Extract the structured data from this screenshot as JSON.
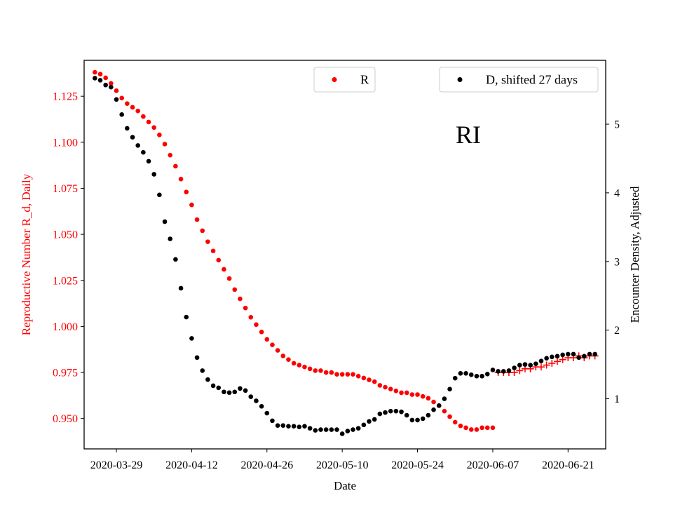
{
  "chart_data": {
    "type": "scatter",
    "xlabel": "Date",
    "ylabel_left": "Reproductive Number R_d, Daily",
    "ylabel_right": "Encounter Density, Adjusted",
    "annotation": "RI",
    "x_tick_labels": [
      "2020-03-29",
      "2020-04-12",
      "2020-04-26",
      "2020-05-10",
      "2020-05-24",
      "2020-06-07",
      "2020-06-21"
    ],
    "y_left_ticks": [
      "0.950",
      "0.975",
      "1.000",
      "1.025",
      "1.050",
      "1.075",
      "1.100",
      "1.125"
    ],
    "y_right_ticks": [
      "1",
      "2",
      "3",
      "4",
      "5"
    ],
    "x_range": [
      "2020-03-23",
      "2020-06-28"
    ],
    "y_left_range": [
      0.9335,
      1.1445
    ],
    "y_right_range": [
      0.27,
      5.93
    ],
    "colors": {
      "R": "#ff0000",
      "D": "#000000",
      "left_axis": "#ff0000",
      "right_axis": "#000000"
    },
    "legend": [
      {
        "label": "R",
        "color": "#ff0000",
        "position": "top-center"
      },
      {
        "label": "D, shifted 27 days",
        "color": "#000000",
        "position": "top-right"
      }
    ],
    "series": [
      {
        "name": "R",
        "axis": "left",
        "marker": "dot",
        "color": "#ff0000",
        "x": [
          "2020-03-25",
          "2020-03-26",
          "2020-03-27",
          "2020-03-28",
          "2020-03-29",
          "2020-03-30",
          "2020-03-31",
          "2020-04-01",
          "2020-04-02",
          "2020-04-03",
          "2020-04-04",
          "2020-04-05",
          "2020-04-06",
          "2020-04-07",
          "2020-04-08",
          "2020-04-09",
          "2020-04-10",
          "2020-04-11",
          "2020-04-12",
          "2020-04-13",
          "2020-04-14",
          "2020-04-15",
          "2020-04-16",
          "2020-04-17",
          "2020-04-18",
          "2020-04-19",
          "2020-04-20",
          "2020-04-21",
          "2020-04-22",
          "2020-04-23",
          "2020-04-24",
          "2020-04-25",
          "2020-04-26",
          "2020-04-27",
          "2020-04-28",
          "2020-04-29",
          "2020-04-30",
          "2020-05-01",
          "2020-05-02",
          "2020-05-03",
          "2020-05-04",
          "2020-05-05",
          "2020-05-06",
          "2020-05-07",
          "2020-05-08",
          "2020-05-09",
          "2020-05-10",
          "2020-05-11",
          "2020-05-12",
          "2020-05-13",
          "2020-05-14",
          "2020-05-15",
          "2020-05-16",
          "2020-05-17",
          "2020-05-18",
          "2020-05-19",
          "2020-05-20",
          "2020-05-21",
          "2020-05-22",
          "2020-05-23",
          "2020-05-24",
          "2020-05-25",
          "2020-05-26",
          "2020-05-27",
          "2020-05-28",
          "2020-05-29",
          "2020-05-30",
          "2020-05-31",
          "2020-06-01",
          "2020-06-02",
          "2020-06-03",
          "2020-06-04",
          "2020-06-05",
          "2020-06-06",
          "2020-06-07"
        ],
        "y": [
          1.138,
          1.137,
          1.135,
          1.132,
          1.128,
          1.124,
          1.121,
          1.119,
          1.117,
          1.114,
          1.111,
          1.108,
          1.104,
          1.099,
          1.093,
          1.087,
          1.08,
          1.073,
          1.066,
          1.058,
          1.052,
          1.046,
          1.041,
          1.036,
          1.031,
          1.026,
          1.02,
          1.015,
          1.01,
          1.005,
          1.001,
          0.997,
          0.993,
          0.99,
          0.987,
          0.984,
          0.982,
          0.98,
          0.979,
          0.978,
          0.977,
          0.976,
          0.976,
          0.975,
          0.975,
          0.974,
          0.974,
          0.974,
          0.974,
          0.973,
          0.972,
          0.971,
          0.97,
          0.968,
          0.967,
          0.966,
          0.965,
          0.964,
          0.964,
          0.963,
          0.963,
          0.962,
          0.961,
          0.959,
          0.957,
          0.954,
          0.951,
          0.948,
          0.946,
          0.945,
          0.944,
          0.944,
          0.945,
          0.945,
          0.945
        ]
      },
      {
        "name": "R",
        "axis": "left",
        "marker": "plus",
        "color": "#ff0000",
        "x": [
          "2020-06-08",
          "2020-06-09",
          "2020-06-10",
          "2020-06-11",
          "2020-06-12",
          "2020-06-13",
          "2020-06-14",
          "2020-06-15",
          "2020-06-16",
          "2020-06-17",
          "2020-06-18",
          "2020-06-19",
          "2020-06-20",
          "2020-06-21",
          "2020-06-22",
          "2020-06-23",
          "2020-06-24",
          "2020-06-25",
          "2020-06-26"
        ],
        "y": [
          0.975,
          0.975,
          0.975,
          0.975,
          0.976,
          0.977,
          0.977,
          0.978,
          0.978,
          0.979,
          0.98,
          0.981,
          0.982,
          0.983,
          0.983,
          0.984,
          0.983,
          0.984,
          0.984
        ]
      },
      {
        "name": "D, shifted 27 days",
        "axis": "right",
        "marker": "dot",
        "color": "#000000",
        "x": [
          "2020-03-25",
          "2020-03-26",
          "2020-03-27",
          "2020-03-28",
          "2020-03-29",
          "2020-03-30",
          "2020-03-31",
          "2020-04-01",
          "2020-04-02",
          "2020-04-03",
          "2020-04-04",
          "2020-04-05",
          "2020-04-06",
          "2020-04-07",
          "2020-04-08",
          "2020-04-09",
          "2020-04-10",
          "2020-04-11",
          "2020-04-12",
          "2020-04-13",
          "2020-04-14",
          "2020-04-15",
          "2020-04-16",
          "2020-04-17",
          "2020-04-18",
          "2020-04-19",
          "2020-04-20",
          "2020-04-21",
          "2020-04-22",
          "2020-04-23",
          "2020-04-24",
          "2020-04-25",
          "2020-04-26",
          "2020-04-27",
          "2020-04-28",
          "2020-04-29",
          "2020-04-30",
          "2020-05-01",
          "2020-05-02",
          "2020-05-03",
          "2020-05-04",
          "2020-05-05",
          "2020-05-06",
          "2020-05-07",
          "2020-05-08",
          "2020-05-09",
          "2020-05-10",
          "2020-05-11",
          "2020-05-12",
          "2020-05-13",
          "2020-05-14",
          "2020-05-15",
          "2020-05-16",
          "2020-05-17",
          "2020-05-18",
          "2020-05-19",
          "2020-05-20",
          "2020-05-21",
          "2020-05-22",
          "2020-05-23",
          "2020-05-24",
          "2020-05-25",
          "2020-05-26",
          "2020-05-27",
          "2020-05-28",
          "2020-05-29",
          "2020-05-30",
          "2020-05-31",
          "2020-06-01",
          "2020-06-02",
          "2020-06-03",
          "2020-06-04",
          "2020-06-05",
          "2020-06-06",
          "2020-06-07",
          "2020-06-08",
          "2020-06-09",
          "2020-06-10",
          "2020-06-11",
          "2020-06-12",
          "2020-06-13",
          "2020-06-14",
          "2020-06-15",
          "2020-06-16",
          "2020-06-17",
          "2020-06-18",
          "2020-06-19",
          "2020-06-20",
          "2020-06-21",
          "2020-06-22",
          "2020-06-23",
          "2020-06-24",
          "2020-06-25",
          "2020-06-26"
        ],
        "y": [
          5.67,
          5.64,
          5.57,
          5.54,
          5.36,
          5.14,
          4.94,
          4.81,
          4.69,
          4.59,
          4.46,
          4.27,
          3.97,
          3.58,
          3.33,
          3.03,
          2.61,
          2.19,
          1.88,
          1.6,
          1.41,
          1.28,
          1.19,
          1.16,
          1.1,
          1.09,
          1.1,
          1.15,
          1.12,
          1.03,
          0.97,
          0.89,
          0.79,
          0.68,
          0.61,
          0.61,
          0.6,
          0.6,
          0.59,
          0.6,
          0.57,
          0.54,
          0.55,
          0.55,
          0.55,
          0.55,
          0.49,
          0.53,
          0.55,
          0.57,
          0.62,
          0.67,
          0.7,
          0.78,
          0.8,
          0.82,
          0.82,
          0.81,
          0.76,
          0.69,
          0.69,
          0.71,
          0.76,
          0.84,
          0.9,
          1.0,
          1.14,
          1.3,
          1.37,
          1.37,
          1.35,
          1.33,
          1.33,
          1.36,
          1.42,
          1.4,
          1.4,
          1.41,
          1.45,
          1.49,
          1.5,
          1.49,
          1.51,
          1.55,
          1.59,
          1.61,
          1.62,
          1.64,
          1.65,
          1.65,
          1.6,
          1.62,
          1.65,
          1.65
        ]
      }
    ]
  }
}
